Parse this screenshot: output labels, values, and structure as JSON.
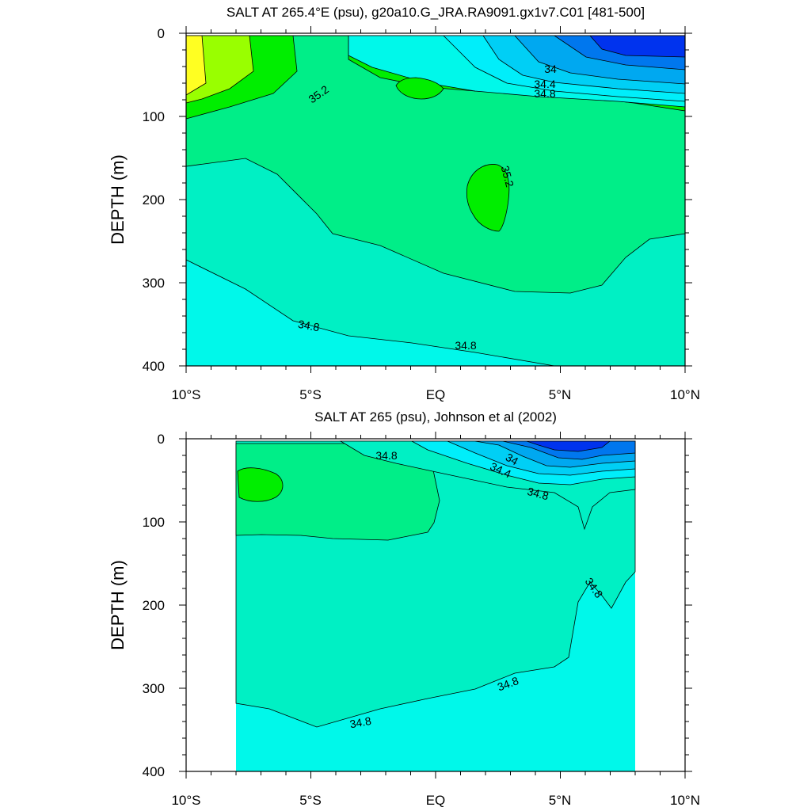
{
  "chart_data": [
    {
      "type": "contour",
      "title": "SALT AT 265.4°E (psu), g20a10.G_JRA.RA9091.gx1v7.C01 [481-500]",
      "ylabel": "DEPTH (m)",
      "x_ticks": [
        "10°S",
        "5°S",
        "EQ",
        "5°N",
        "10°N"
      ],
      "y_ticks": [
        "0",
        "100",
        "200",
        "300",
        "400"
      ],
      "xlim": [
        -10,
        10
      ],
      "ylim": [
        400,
        0
      ],
      "contour_interval": 0.2,
      "contour_labels": [
        "34",
        "34.4",
        "34.8",
        "35.2",
        "35.2",
        "34.8",
        "34.8"
      ]
    },
    {
      "type": "contour",
      "title": "SALT AT 265 (psu), Johnson et al (2002)",
      "ylabel": "DEPTH (m)",
      "x_ticks": [
        "10°S",
        "5°S",
        "EQ",
        "5°N",
        "10°N"
      ],
      "y_ticks": [
        "0",
        "100",
        "200",
        "300",
        "400"
      ],
      "xlim": [
        -10,
        10
      ],
      "ylim": [
        400,
        0
      ],
      "data_xlim": [
        -8,
        8
      ],
      "contour_interval": 0.2,
      "contour_labels": [
        "34.8",
        "34",
        "34.4",
        "34.8",
        "34.8",
        "34.8",
        "34.8"
      ]
    }
  ],
  "colors": {
    "c_33_6": "#0033ee",
    "c_33_8": "#0077ee",
    "c_34_0": "#00a8f0",
    "c_34_2": "#00cff5",
    "c_34_4": "#00eefa",
    "c_34_6": "#00f8ea",
    "c_34_8": "#00f0c4",
    "c_35_0": "#00ee88",
    "c_35_2": "#00ee00",
    "c_35_4": "#99ff00",
    "c_35_6": "#ffff22",
    "line": "#000000"
  }
}
